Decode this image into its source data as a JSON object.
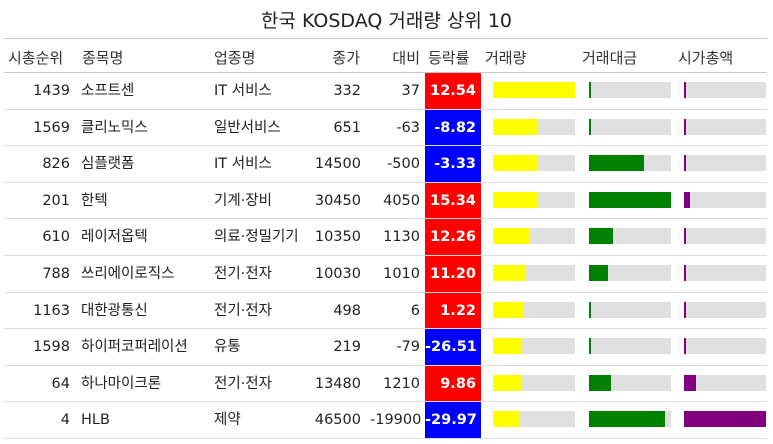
{
  "title": "한국 KOSDAQ 거래량 상위 10",
  "headers": {
    "rank": "시총순위",
    "name": "종목명",
    "sector": "업종명",
    "price": "종가",
    "diff": "대비",
    "pct": "등락률",
    "volume": "거래량",
    "amount": "거래대금",
    "mcap": "시가총액"
  },
  "colors": {
    "up": "#ff0000",
    "down": "#0000ff",
    "volume_bar": "#ffff00",
    "amount_bar": "#008000",
    "mcap_bar": "#800080",
    "bar_bg": "#e0e0e0"
  },
  "chart_data": {
    "type": "table",
    "rows": [
      {
        "rank": "1439",
        "name": "소프트센",
        "sector": "IT 서비스",
        "price": "332",
        "diff": "37",
        "pct": "12.54",
        "volume": 1.0,
        "amount": 0.03,
        "mcap": 0.02
      },
      {
        "rank": "1569",
        "name": "클리노믹스",
        "sector": "일반서비스",
        "price": "651",
        "diff": "-63",
        "pct": "-8.82",
        "volume": 0.55,
        "amount": 0.02,
        "mcap": 0.02
      },
      {
        "rank": "826",
        "name": "심플랫폼",
        "sector": "IT 서비스",
        "price": "14500",
        "diff": "-500",
        "pct": "-3.33",
        "volume": 0.55,
        "amount": 0.67,
        "mcap": 0.02
      },
      {
        "rank": "201",
        "name": "한텍",
        "sector": "기계·장비",
        "price": "30450",
        "diff": "4050",
        "pct": "15.34",
        "volume": 0.55,
        "amount": 1.0,
        "mcap": 0.07
      },
      {
        "rank": "610",
        "name": "레이저옵텍",
        "sector": "의료·정밀기기",
        "price": "10350",
        "diff": "1130",
        "pct": "12.26",
        "volume": 0.45,
        "amount": 0.29,
        "mcap": 0.02
      },
      {
        "rank": "788",
        "name": "쓰리에이로직스",
        "sector": "전기·전자",
        "price": "10030",
        "diff": "1010",
        "pct": "11.20",
        "volume": 0.4,
        "amount": 0.23,
        "mcap": 0.02
      },
      {
        "rank": "1163",
        "name": "대한광통신",
        "sector": "전기·전자",
        "price": "498",
        "diff": "6",
        "pct": "1.22",
        "volume": 0.38,
        "amount": 0.02,
        "mcap": 0.02
      },
      {
        "rank": "1598",
        "name": "하이퍼코퍼레이션",
        "sector": "유통",
        "price": "219",
        "diff": "-79",
        "pct": "-26.51",
        "volume": 0.35,
        "amount": 0.01,
        "mcap": 0.02
      },
      {
        "rank": "64",
        "name": "하나마이크론",
        "sector": "전기·전자",
        "price": "13480",
        "diff": "1210",
        "pct": "9.86",
        "volume": 0.35,
        "amount": 0.27,
        "mcap": 0.15
      },
      {
        "rank": "4",
        "name": "HLB",
        "sector": "제약",
        "price": "46500",
        "diff": "-19900",
        "pct": "-29.97",
        "volume": 0.33,
        "amount": 0.93,
        "mcap": 1.0
      }
    ]
  }
}
